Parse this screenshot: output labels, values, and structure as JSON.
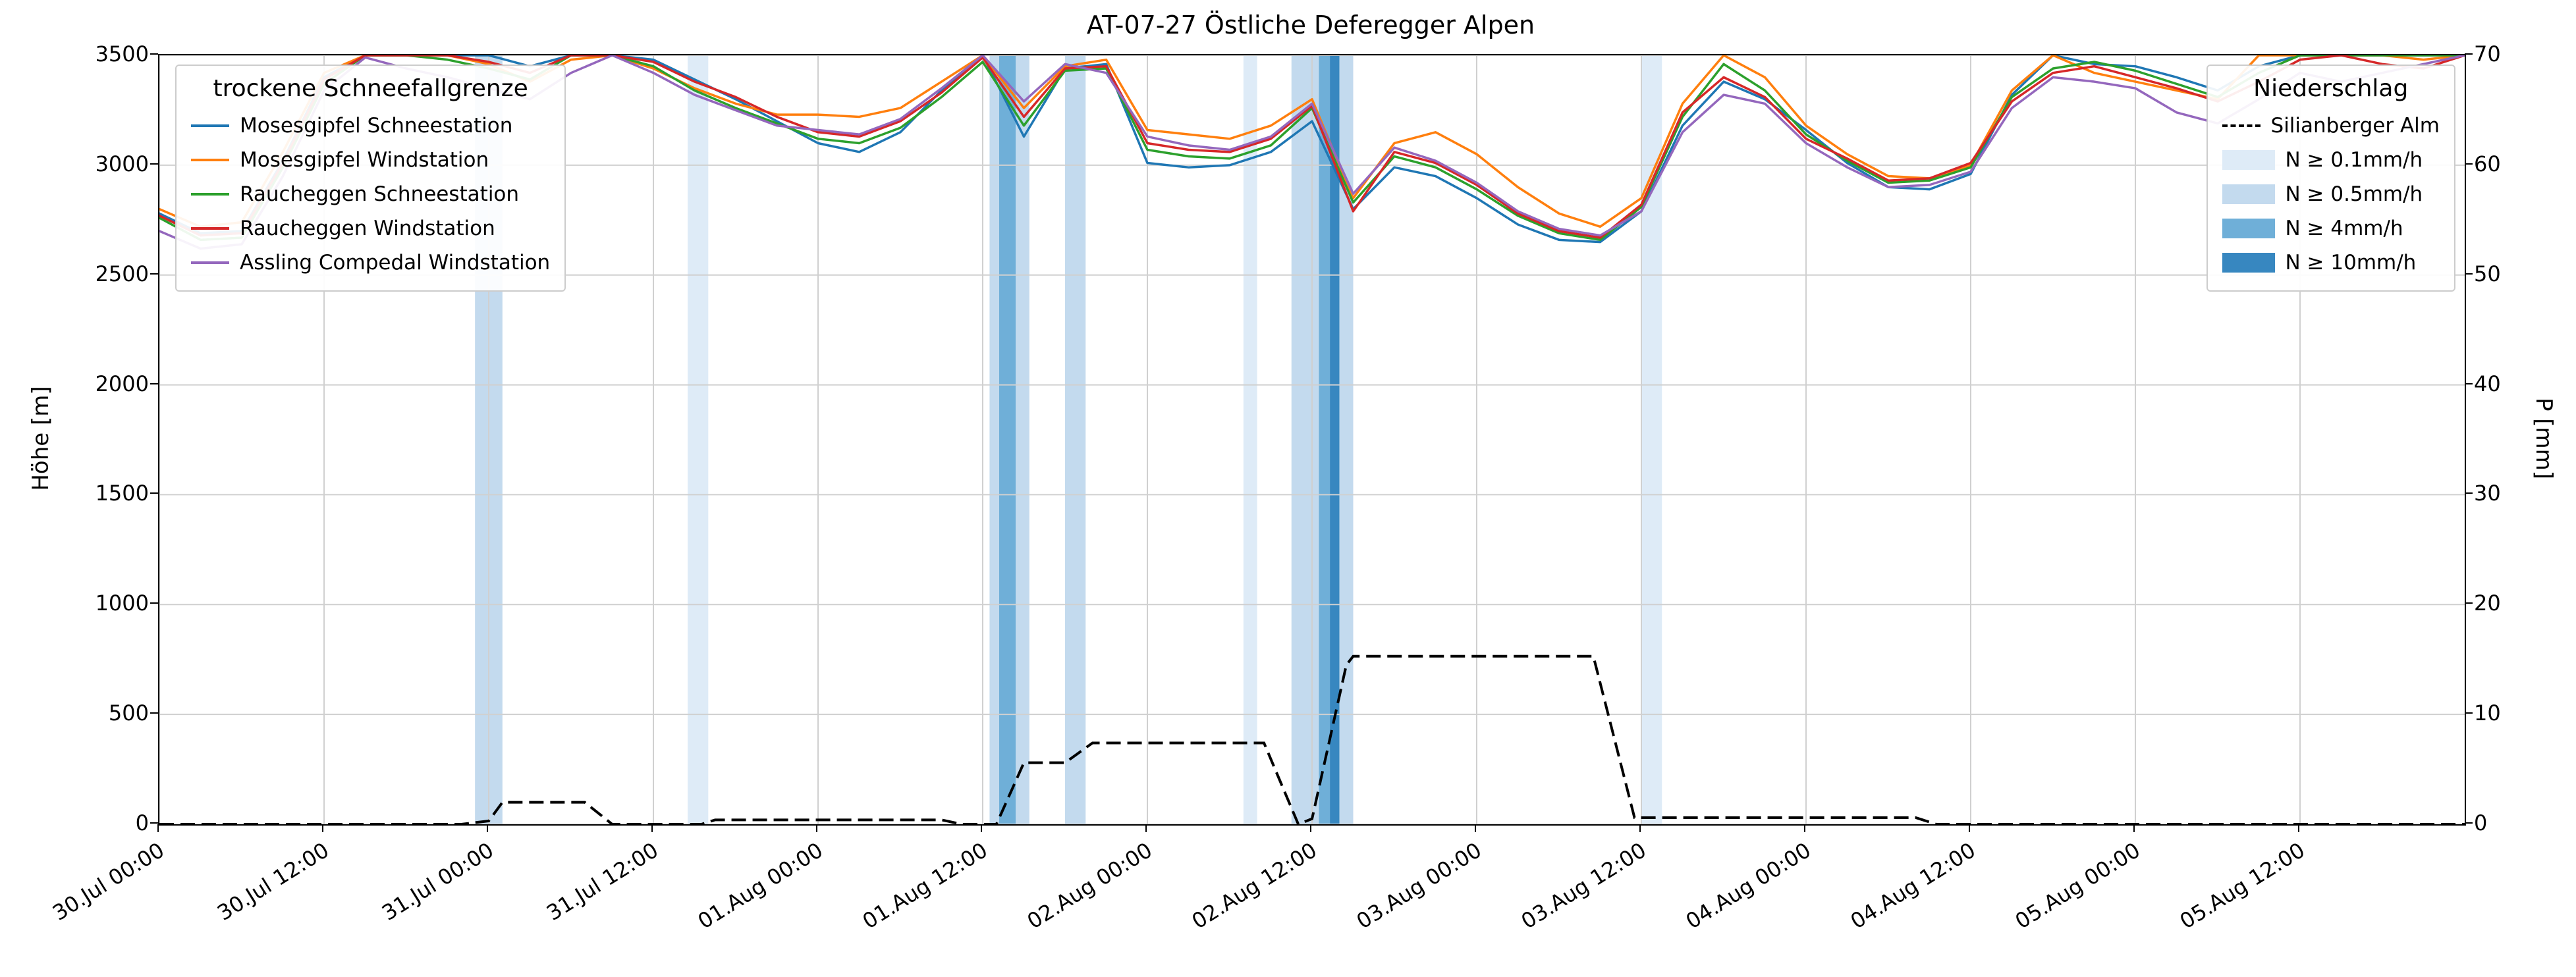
{
  "title": "AT-07-27 Östliche Deferegger Alpen",
  "axes": {
    "y_left": {
      "label": "Höhe [m]",
      "ticks": [
        0,
        500,
        1000,
        1500,
        2000,
        2500,
        3000,
        3500
      ]
    },
    "y_right": {
      "label": "P [mm]",
      "ticks": [
        0,
        10,
        20,
        30,
        40,
        50,
        60,
        70
      ]
    },
    "x": {
      "tick_hours": [
        0,
        12,
        24,
        36,
        48,
        60,
        72,
        84,
        96,
        108,
        120,
        132,
        144,
        156
      ],
      "tick_labels": [
        "30.Jul 00:00",
        "30.Jul 12:00",
        "31.Jul 00:00",
        "31.Jul 12:00",
        "01.Aug 00:00",
        "01.Aug 12:00",
        "02.Aug 00:00",
        "02.Aug 12:00",
        "03.Aug 00:00",
        "03.Aug 12:00",
        "04.Aug 00:00",
        "04.Aug 12:00",
        "05.Aug 00:00",
        "05.Aug 12:00"
      ]
    }
  },
  "legend_snowline": {
    "title": "trockene Schneefallgrenze"
  },
  "legend_precip": {
    "title": "Niederschlag",
    "line_entry": {
      "label": "Silianberger Alm",
      "color": "#000000"
    },
    "band_legend": [
      {
        "label": "N ≥ 0.1mm/h",
        "level": "0.1"
      },
      {
        "label": "N ≥ 0.5mm/h",
        "level": "0.5"
      },
      {
        "label": "N ≥ 4mm/h",
        "level": "4"
      },
      {
        "label": "N ≥ 10mm/h",
        "level": "10"
      }
    ]
  },
  "chart_data": {
    "type": "line",
    "title": "AT-07-27 Östliche Deferegger Alpen",
    "x_unit": "hours since 30.Jul 00:00",
    "x_range_h": [
      0,
      168
    ],
    "y_left_range": [
      0,
      3500
    ],
    "y_right_range": [
      0,
      70
    ],
    "grid": true,
    "x_hours": [
      0,
      3,
      6,
      9,
      12,
      15,
      18,
      21,
      24,
      27,
      30,
      33,
      36,
      39,
      42,
      45,
      48,
      51,
      54,
      57,
      60,
      63,
      66,
      69,
      72,
      75,
      78,
      81,
      84,
      87,
      90,
      93,
      96,
      99,
      102,
      105,
      108,
      111,
      114,
      117,
      120,
      123,
      126,
      129,
      132,
      135,
      138,
      141,
      144,
      147,
      150,
      153,
      156,
      159,
      162,
      165,
      168
    ],
    "series": [
      {
        "name": "Mosesgipfel Schneestation",
        "color": "#1f77b4",
        "values": [
          2780,
          2690,
          2700,
          3020,
          3400,
          3500,
          3500,
          3500,
          3500,
          3450,
          3500,
          3500,
          3480,
          3390,
          3300,
          3200,
          3100,
          3060,
          3150,
          3340,
          3500,
          3130,
          3440,
          3460,
          3010,
          2990,
          3000,
          3060,
          3200,
          2800,
          2990,
          2950,
          2850,
          2730,
          2660,
          2650,
          2790,
          3180,
          3380,
          3300,
          3160,
          3010,
          2900,
          2890,
          2960,
          3320,
          3500,
          3460,
          3450,
          3400,
          3340,
          3450,
          3500,
          3500,
          3500,
          3500,
          3500
        ]
      },
      {
        "name": "Mosesgipfel Windstation",
        "color": "#ff7f0e",
        "values": [
          2800,
          2720,
          2740,
          3060,
          3420,
          3500,
          3500,
          3500,
          3460,
          3380,
          3480,
          3500,
          3440,
          3350,
          3280,
          3230,
          3230,
          3220,
          3260,
          3380,
          3500,
          3260,
          3450,
          3480,
          3160,
          3140,
          3120,
          3180,
          3300,
          2850,
          3100,
          3150,
          3050,
          2900,
          2780,
          2720,
          2850,
          3280,
          3500,
          3400,
          3180,
          3050,
          2950,
          2940,
          3000,
          3340,
          3500,
          3420,
          3380,
          3340,
          3300,
          3500,
          3500,
          3500,
          3500,
          3480,
          3500
        ]
      },
      {
        "name": "Raucheggen Schneestation",
        "color": "#2ca02c",
        "values": [
          2760,
          2660,
          2670,
          2990,
          3370,
          3500,
          3500,
          3480,
          3440,
          3390,
          3500,
          3500,
          3450,
          3340,
          3260,
          3190,
          3120,
          3100,
          3170,
          3310,
          3470,
          3180,
          3430,
          3440,
          3070,
          3040,
          3030,
          3090,
          3260,
          2830,
          3040,
          2990,
          2890,
          2770,
          2690,
          2660,
          2810,
          3220,
          3460,
          3340,
          3140,
          3020,
          2920,
          2930,
          2990,
          3310,
          3440,
          3470,
          3430,
          3370,
          3310,
          3420,
          3500,
          3500,
          3500,
          3500,
          3500
        ]
      },
      {
        "name": "Raucheggen Windstation",
        "color": "#d62728",
        "values": [
          2770,
          2680,
          2690,
          3010,
          3390,
          3500,
          3500,
          3500,
          3470,
          3420,
          3500,
          3500,
          3470,
          3380,
          3310,
          3220,
          3150,
          3130,
          3200,
          3330,
          3490,
          3220,
          3440,
          3450,
          3100,
          3070,
          3060,
          3120,
          3270,
          2790,
          3060,
          3010,
          2910,
          2780,
          2700,
          2670,
          2820,
          3240,
          3400,
          3310,
          3120,
          3030,
          2930,
          2940,
          3010,
          3290,
          3420,
          3450,
          3400,
          3350,
          3290,
          3380,
          3480,
          3500,
          3460,
          3440,
          3500
        ]
      },
      {
        "name": "Assling Compedal Windstation",
        "color": "#9467bd",
        "values": [
          2700,
          2620,
          2640,
          2950,
          3340,
          3490,
          3440,
          3400,
          3350,
          3300,
          3420,
          3500,
          3420,
          3320,
          3250,
          3180,
          3160,
          3140,
          3210,
          3350,
          3500,
          3290,
          3460,
          3420,
          3130,
          3090,
          3070,
          3130,
          3280,
          2870,
          3080,
          3020,
          2920,
          2790,
          2710,
          2680,
          2790,
          3150,
          3320,
          3280,
          3100,
          2990,
          2900,
          2910,
          2970,
          3260,
          3400,
          3380,
          3350,
          3240,
          3190,
          3300,
          3420,
          3380,
          3420,
          3460,
          3500
        ]
      }
    ],
    "precip_line": {
      "name": "Silianberger Alm",
      "unit": "mm",
      "style": "dashed",
      "color": "#000000",
      "points": [
        [
          0,
          0
        ],
        [
          22,
          0
        ],
        [
          24,
          0.3
        ],
        [
          25,
          2
        ],
        [
          31,
          2
        ],
        [
          33,
          0
        ],
        [
          39.5,
          0
        ],
        [
          40.5,
          0.4
        ],
        [
          57,
          0.4
        ],
        [
          58.5,
          0
        ],
        [
          61,
          0
        ],
        [
          63,
          5.6
        ],
        [
          66,
          5.6
        ],
        [
          68,
          7.4
        ],
        [
          80.5,
          7.4
        ],
        [
          83,
          0
        ],
        [
          84,
          0.5
        ],
        [
          86.5,
          14.5
        ],
        [
          87,
          15.3
        ],
        [
          104.5,
          15.3
        ],
        [
          107.5,
          0.6
        ],
        [
          128,
          0.6
        ],
        [
          129.5,
          0
        ],
        [
          168,
          0
        ]
      ]
    },
    "band_colors": {
      "0.1": "#deebf7",
      "0.5": "#c3daee",
      "4": "#6fafd8",
      "10": "#3787c0"
    },
    "precip_bands": [
      {
        "start_h": 23,
        "end_h": 25,
        "level": "0.5"
      },
      {
        "start_h": 38.5,
        "end_h": 40,
        "level": "0.1"
      },
      {
        "start_h": 60.5,
        "end_h": 61.2,
        "level": "0.5"
      },
      {
        "start_h": 61.2,
        "end_h": 62.4,
        "level": "4"
      },
      {
        "start_h": 62.4,
        "end_h": 63.4,
        "level": "0.5"
      },
      {
        "start_h": 66,
        "end_h": 67.5,
        "level": "0.5"
      },
      {
        "start_h": 79,
        "end_h": 80,
        "level": "0.1"
      },
      {
        "start_h": 82.5,
        "end_h": 84.5,
        "level": "0.5"
      },
      {
        "start_h": 84.5,
        "end_h": 85.3,
        "level": "4"
      },
      {
        "start_h": 85.3,
        "end_h": 86,
        "level": "10"
      },
      {
        "start_h": 86,
        "end_h": 87,
        "level": "0.5"
      },
      {
        "start_h": 108,
        "end_h": 109.5,
        "level": "0.1"
      }
    ]
  }
}
